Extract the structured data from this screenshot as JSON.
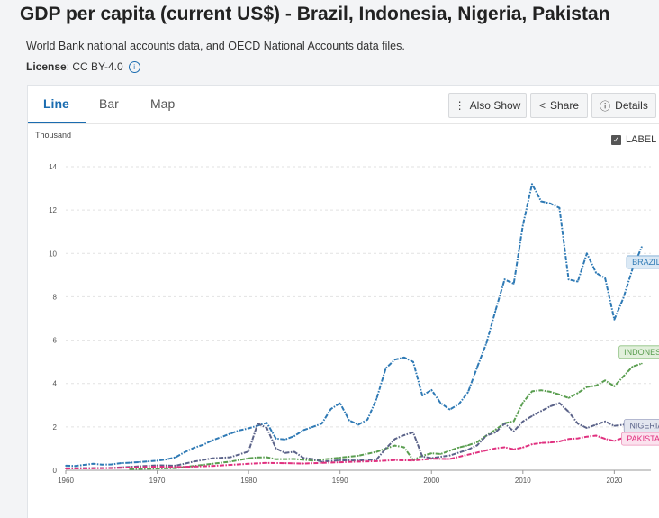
{
  "header": {
    "title": "GDP per capita (current US$) - Brazil, Indonesia, Nigeria, Pakistan",
    "source": "World Bank national accounts data, and OECD National Accounts data files.",
    "license_label": "License",
    "license_value": ": CC BY-4.0",
    "info_icon": "info-icon"
  },
  "tabs": [
    {
      "label": "Line",
      "active": true
    },
    {
      "label": "Bar",
      "active": false
    },
    {
      "label": "Map",
      "active": false
    }
  ],
  "toolbar": {
    "also_show": "Also Show",
    "share": "Share",
    "details": "Details",
    "icons": [
      "vertical-dots-icon",
      "share-icon",
      "info-icon"
    ]
  },
  "chart_controls": {
    "unit": "Thousand",
    "label_toggle": "LABEL",
    "label_checked": true
  },
  "colors": {
    "accent": "#1a6cb0",
    "brazil": "#2f7ab5",
    "indonesia": "#5a9e50",
    "nigeria": "#5b6389",
    "pakistan": "#e0307f"
  },
  "chart_data": {
    "type": "line",
    "title": "GDP per capita (current US$) - Brazil, Indonesia, Nigeria, Pakistan",
    "xlabel": "",
    "ylabel": "Thousand",
    "xlim": [
      1960,
      2024
    ],
    "ylim": [
      0,
      14
    ],
    "x_ticks": [
      "1960",
      "1970",
      "1980",
      "1990",
      "2000",
      "2010",
      "2020"
    ],
    "y_ticks": [
      "0",
      "2",
      "4",
      "6",
      "8",
      "10",
      "12",
      "14"
    ],
    "grid": true,
    "series": [
      {
        "name": "BRAZIL",
        "color": "#2f7ab5",
        "x": [
          1960,
          1961,
          1962,
          1963,
          1964,
          1965,
          1966,
          1967,
          1968,
          1969,
          1970,
          1971,
          1972,
          1973,
          1974,
          1975,
          1976,
          1977,
          1978,
          1979,
          1980,
          1981,
          1982,
          1983,
          1984,
          1985,
          1986,
          1987,
          1988,
          1989,
          1990,
          1991,
          1992,
          1993,
          1994,
          1995,
          1996,
          1997,
          1998,
          1999,
          2000,
          2001,
          2002,
          2003,
          2004,
          2005,
          2006,
          2007,
          2008,
          2009,
          2010,
          2011,
          2012,
          2013,
          2014,
          2015,
          2016,
          2017,
          2018,
          2019,
          2020,
          2021,
          2022,
          2023
        ],
        "values": [
          0.21,
          0.2,
          0.25,
          0.3,
          0.26,
          0.27,
          0.33,
          0.35,
          0.38,
          0.41,
          0.44,
          0.5,
          0.6,
          0.83,
          1.03,
          1.17,
          1.37,
          1.53,
          1.69,
          1.84,
          1.93,
          2.06,
          2.19,
          1.46,
          1.42,
          1.58,
          1.85,
          2.0,
          2.15,
          2.82,
          3.1,
          2.3,
          2.1,
          2.34,
          3.3,
          4.7,
          5.1,
          5.2,
          5.0,
          3.45,
          3.7,
          3.1,
          2.8,
          3.05,
          3.6,
          4.75,
          5.85,
          7.35,
          8.8,
          8.6,
          11.3,
          13.2,
          12.4,
          12.3,
          12.1,
          8.8,
          8.7,
          10.0,
          9.1,
          8.85,
          6.95,
          7.95,
          9.3,
          10.3
        ]
      },
      {
        "name": "INDONESIA",
        "color": "#5a9e50",
        "x": [
          1967,
          1970,
          1972,
          1974,
          1976,
          1978,
          1980,
          1981,
          1982,
          1983,
          1985,
          1987,
          1990,
          1992,
          1994,
          1995,
          1996,
          1997,
          1998,
          1999,
          2000,
          2001,
          2002,
          2003,
          2004,
          2005,
          2006,
          2007,
          2008,
          2009,
          2010,
          2011,
          2012,
          2013,
          2014,
          2015,
          2016,
          2017,
          2018,
          2019,
          2020,
          2021,
          2022,
          2023
        ],
        "values": [
          0.05,
          0.08,
          0.1,
          0.2,
          0.3,
          0.4,
          0.55,
          0.59,
          0.6,
          0.51,
          0.52,
          0.45,
          0.58,
          0.67,
          0.85,
          1.0,
          1.14,
          1.06,
          0.47,
          0.67,
          0.78,
          0.75,
          0.9,
          1.05,
          1.15,
          1.3,
          1.6,
          1.87,
          2.17,
          2.26,
          3.12,
          3.64,
          3.69,
          3.62,
          3.49,
          3.33,
          3.56,
          3.84,
          3.9,
          4.14,
          3.87,
          4.33,
          4.78,
          4.92
        ]
      },
      {
        "name": "NIGERIA",
        "color": "#5b6389",
        "x": [
          1960,
          1965,
          1970,
          1972,
          1974,
          1976,
          1978,
          1980,
          1981,
          1982,
          1983,
          1984,
          1985,
          1986,
          1987,
          1988,
          1990,
          1992,
          1994,
          1995,
          1996,
          1997,
          1998,
          1999,
          2000,
          2002,
          2004,
          2005,
          2006,
          2007,
          2008,
          2009,
          2010,
          2011,
          2012,
          2013,
          2014,
          2015,
          2016,
          2017,
          2018,
          2019,
          2020,
          2021,
          2022,
          2023
        ],
        "values": [
          0.09,
          0.11,
          0.23,
          0.21,
          0.4,
          0.55,
          0.6,
          0.87,
          2.16,
          1.95,
          1.0,
          0.8,
          0.85,
          0.57,
          0.52,
          0.4,
          0.46,
          0.45,
          0.5,
          1.0,
          1.44,
          1.62,
          1.75,
          0.63,
          0.56,
          0.68,
          0.95,
          1.15,
          1.6,
          1.75,
          2.15,
          1.8,
          2.25,
          2.5,
          2.73,
          2.95,
          3.1,
          2.7,
          2.15,
          1.95,
          2.1,
          2.25,
          2.05,
          2.1,
          2.15,
          1.65
        ]
      },
      {
        "name": "PAKISTAN",
        "color": "#e0307f",
        "x": [
          1960,
          1965,
          1970,
          1972,
          1974,
          1976,
          1978,
          1980,
          1982,
          1984,
          1986,
          1988,
          1990,
          1992,
          1994,
          1996,
          1998,
          2000,
          2002,
          2004,
          2005,
          2006,
          2007,
          2008,
          2009,
          2010,
          2011,
          2012,
          2013,
          2014,
          2015,
          2016,
          2017,
          2018,
          2019,
          2020,
          2021,
          2022,
          2023
        ],
        "values": [
          0.08,
          0.1,
          0.17,
          0.15,
          0.17,
          0.2,
          0.25,
          0.3,
          0.34,
          0.33,
          0.31,
          0.34,
          0.37,
          0.4,
          0.42,
          0.47,
          0.45,
          0.53,
          0.52,
          0.72,
          0.82,
          0.92,
          1.01,
          1.06,
          0.97,
          1.05,
          1.2,
          1.26,
          1.28,
          1.33,
          1.44,
          1.47,
          1.55,
          1.6,
          1.45,
          1.35,
          1.5,
          1.6,
          1.45
        ]
      }
    ]
  }
}
